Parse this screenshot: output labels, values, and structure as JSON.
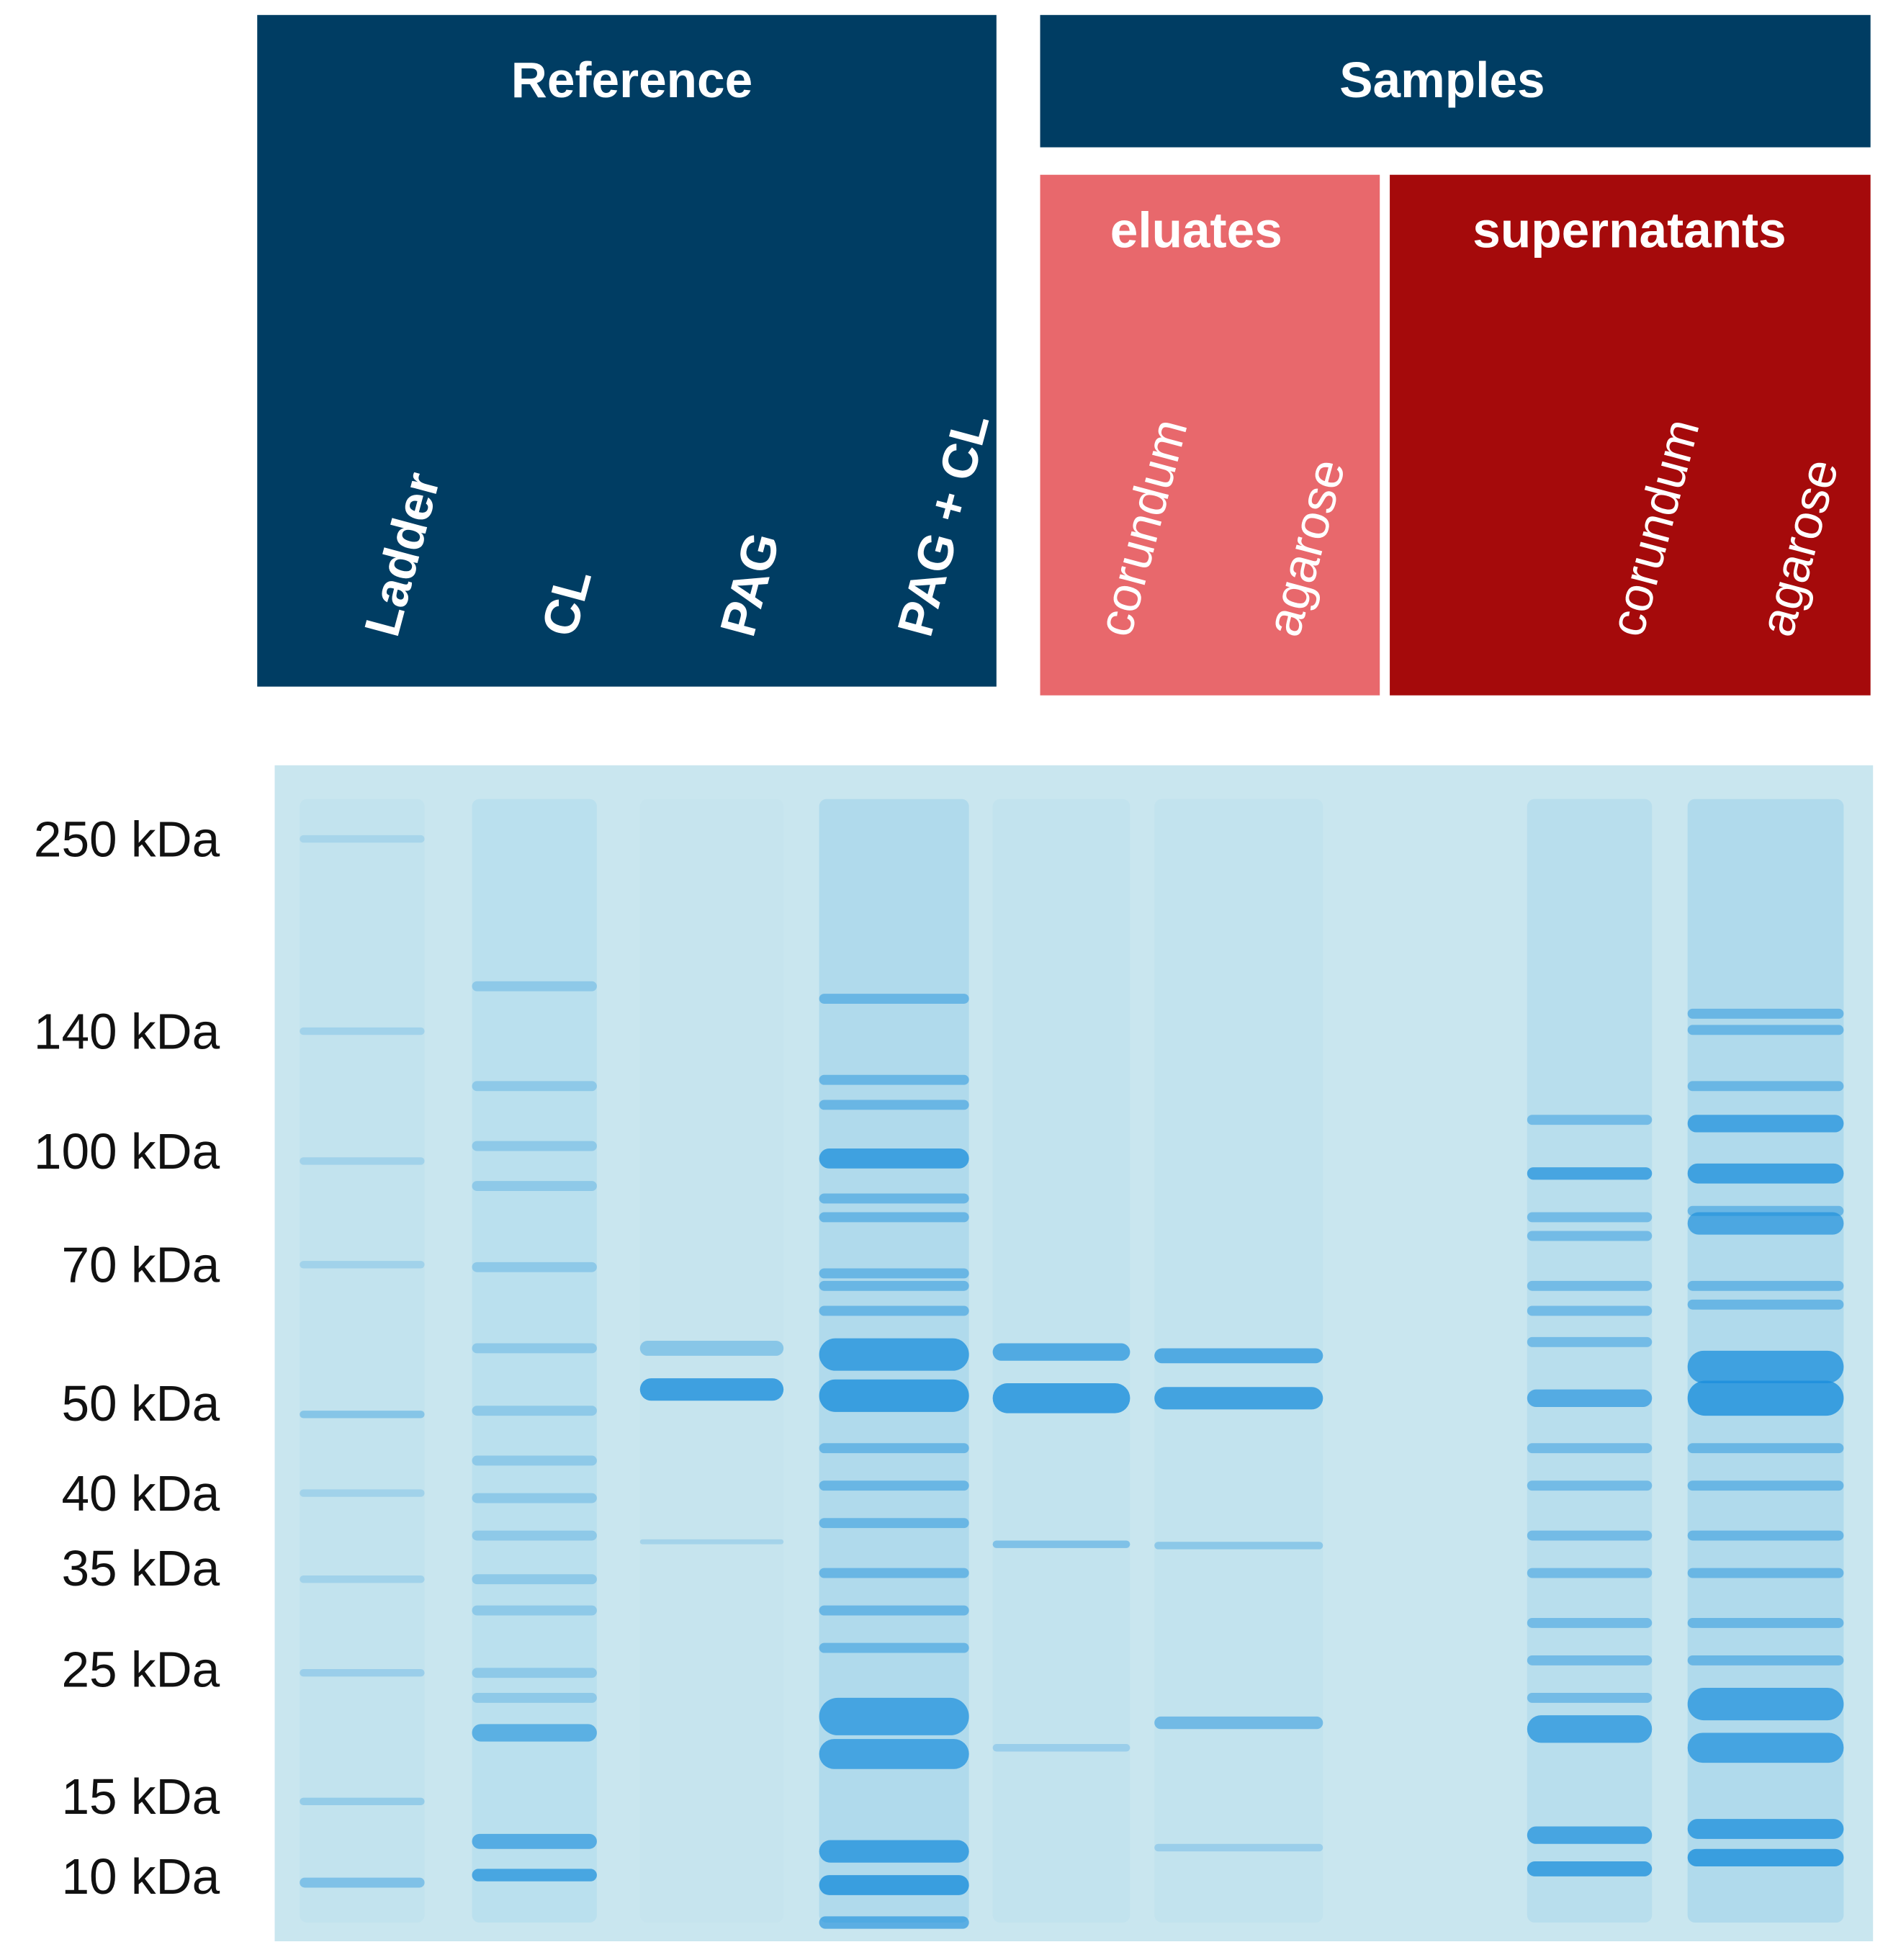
{
  "header": {
    "reference": "Reference",
    "samples": "Samples",
    "eluates": "eluates",
    "supernatants": "supernatants"
  },
  "lanes": [
    "Ladder",
    "CL",
    "PAG",
    "PAG + CL",
    "corundum",
    "agarose",
    "corundum",
    "agarose"
  ],
  "markers": [
    "250 kDa",
    "140 kDa",
    "100 kDa",
    "70 kDa",
    "50 kDa",
    "40 kDa",
    "35 kDa",
    "25 kDa",
    "15 kDa",
    "10 kDa"
  ]
}
